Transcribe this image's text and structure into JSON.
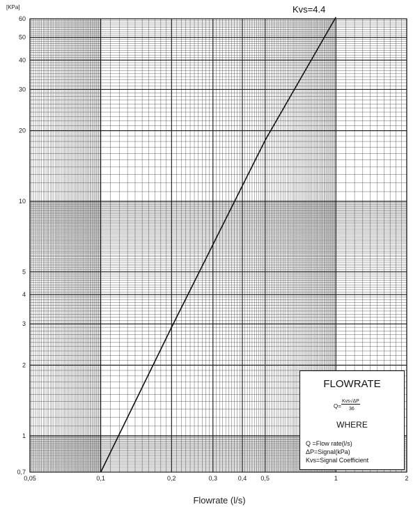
{
  "chart_data": {
    "type": "line",
    "x_scale": "log",
    "y_scale": "log",
    "xlim": [
      0.05,
      2
    ],
    "ylim": [
      0.7,
      60
    ],
    "x_ticks": [
      0.05,
      0.1,
      0.2,
      0.3,
      0.4,
      0.5,
      1,
      2
    ],
    "x_tick_labels": [
      "0,05",
      "0,1",
      "0,2",
      "0,3",
      "0,4",
      "0,5",
      "1",
      "2"
    ],
    "y_ticks": [
      0.7,
      1,
      2,
      3,
      4,
      5,
      10,
      20,
      30,
      40,
      50,
      60
    ],
    "y_tick_labels": [
      "0,7",
      "1",
      "2",
      "3",
      "4",
      "5",
      "10",
      "20",
      "30",
      "40",
      "50",
      "60"
    ],
    "xlabel": "Flowrate (l/s)",
    "ylabel": "[KPa]",
    "grid": true,
    "series": [
      {
        "name": "Kvs=4.4",
        "x": [
          0.1,
          0.2,
          0.5,
          1.0
        ],
        "y": [
          0.7,
          2.9,
          18.2,
          61.0
        ]
      }
    ],
    "annotation": "Kvs=4.4",
    "legend_placement": "bottom-right",
    "colors": {
      "grid": "#333333",
      "line": "#111111"
    }
  },
  "legend": {
    "title": "FLOWRATE",
    "formula_lhs": "Q=",
    "formula_numerator": "Kvs√ΔP",
    "formula_denominator": "36",
    "where_label": "WHERE",
    "lines": [
      "Q  =Flow rate(l/s)",
      "ΔP=Signal(kPa)",
      "Kvs=Signal Coefficient"
    ]
  }
}
